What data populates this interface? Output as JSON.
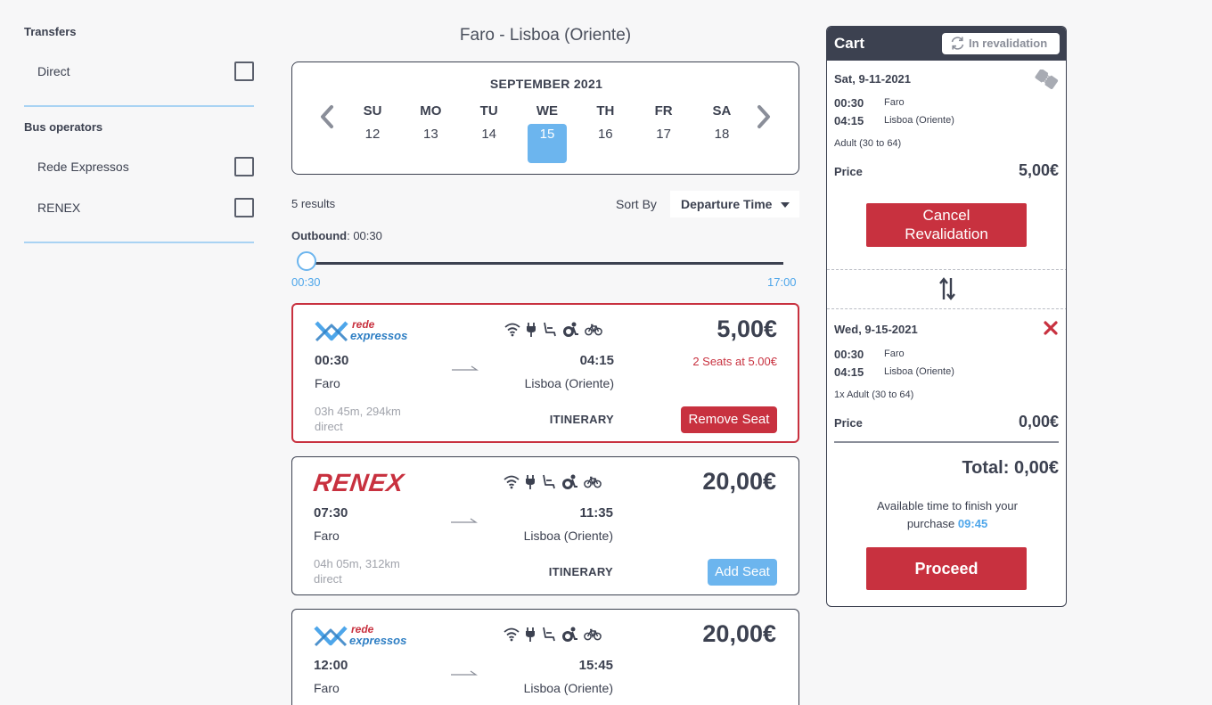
{
  "sidebar": {
    "transfers_title": "Transfers",
    "transfers": [
      {
        "label": "Direct"
      }
    ],
    "operators_title": "Bus operators",
    "operators": [
      {
        "label": "Rede Expressos"
      },
      {
        "label": "RENEX"
      }
    ]
  },
  "route": {
    "title": "Faro - Lisboa (Oriente)"
  },
  "calendar": {
    "month": "SEPTEMBER 2021",
    "days": [
      {
        "dow": "SU",
        "num": "12"
      },
      {
        "dow": "MO",
        "num": "13"
      },
      {
        "dow": "TU",
        "num": "14"
      },
      {
        "dow": "WE",
        "num": "15",
        "selected": true
      },
      {
        "dow": "TH",
        "num": "16"
      },
      {
        "dow": "FR",
        "num": "17"
      },
      {
        "dow": "SA",
        "num": "18"
      }
    ]
  },
  "results": {
    "count_label": "5 results",
    "sort_label": "Sort By",
    "sort_value": "Departure Time"
  },
  "filter": {
    "outbound_label": "Outbound",
    "outbound_value": ": 00:30",
    "min_label": "00:30",
    "max_label": "17:00",
    "slider_position": 0.0
  },
  "trips": [
    {
      "operator": "Rede Expressos",
      "logo_top": "rede",
      "logo_bottom": "expressos",
      "price": "5,00€",
      "dep_time": "00:30",
      "arr_time": "04:15",
      "origin": "Faro",
      "destination": "Lisboa (Oriente)",
      "duration": "03h 45m, 294km",
      "transfer": "direct",
      "seats_note": "2 Seats at 5.00€",
      "itinerary": "ITINERARY",
      "action": "Remove Seat"
    },
    {
      "operator": "RENEX",
      "logo_text": "RENEX",
      "price": "20,00€",
      "dep_time": "07:30",
      "arr_time": "11:35",
      "origin": "Faro",
      "destination": "Lisboa (Oriente)",
      "duration": "04h 05m, 312km",
      "transfer": "direct",
      "itinerary": "ITINERARY",
      "action": "Add Seat"
    },
    {
      "operator": "Rede Expressos",
      "logo_top": "rede",
      "logo_bottom": "expressos",
      "price": "20,00€",
      "dep_time": "12:00",
      "arr_time": "15:45",
      "origin": "Faro",
      "destination": "Lisboa (Oriente)"
    }
  ],
  "cart": {
    "title": "Cart",
    "status": "In revalidation",
    "original": {
      "date": "Sat, 9-11-2021",
      "dep_time": "00:30",
      "dep_place": "Faro",
      "arr_time": "04:15",
      "arr_place": "Lisboa (Oriente)",
      "pax": "Adult (30 to 64)",
      "price_label": "Price",
      "price": "5,00€",
      "cancel_label_1": "Cancel",
      "cancel_label_2": "Revalidation"
    },
    "new": {
      "date": "Wed, 9-15-2021",
      "dep_time": "00:30",
      "dep_place": "Faro",
      "arr_time": "04:15",
      "arr_place": "Lisboa (Oriente)",
      "pax": "1x Adult (30 to 64)",
      "price_label": "Price",
      "price": "0,00€"
    },
    "total": "Total: 0,00€",
    "available_text_1": "Available time to finish your",
    "available_text_2": "purchase",
    "available_time": "09:45",
    "proceed_label": "Proceed"
  },
  "colors": {
    "accent_red": "#c8313f",
    "accent_blue": "#6cb5ee",
    "dark": "#3c4150"
  },
  "icons": [
    "wifi-icon",
    "power-outlet-icon",
    "reclining-seat-icon",
    "accessibility-icon",
    "bicycle-icon",
    "ticket-icon",
    "sync-icon",
    "swap-icon",
    "remove-icon"
  ]
}
